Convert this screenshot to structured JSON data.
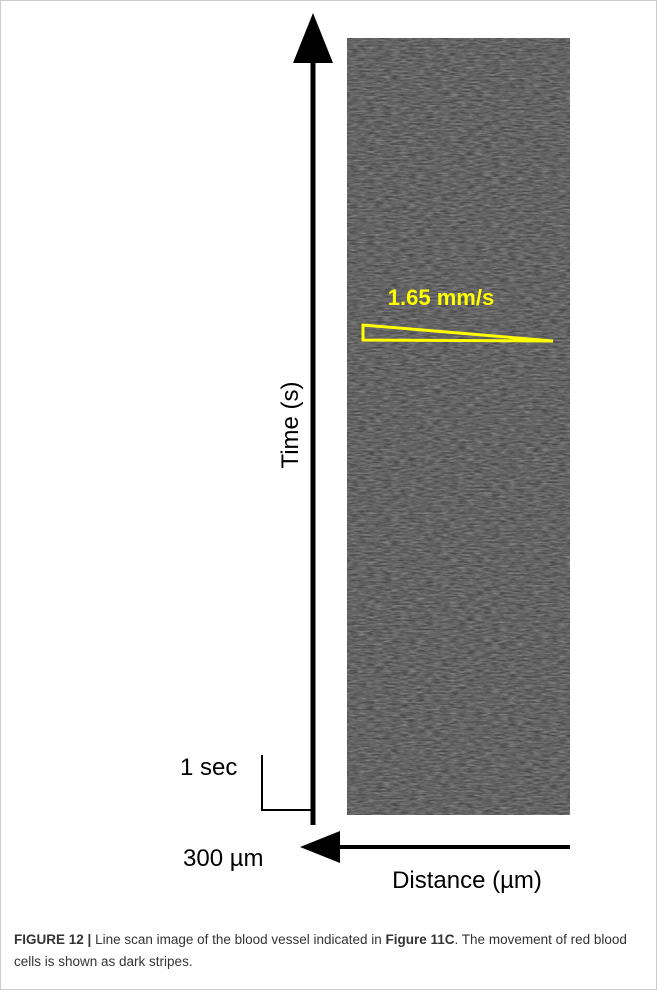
{
  "figure": {
    "time_axis_label": "Time (s)",
    "velocity_label": "1.65 mm/s",
    "time_scale_label": "1 sec",
    "distance_scale_label": "300 µm",
    "distance_axis_label": "Distance (µm)"
  },
  "caption": {
    "label": "FIGURE 12 |",
    "text_before": "Line scan image of the blood vessel indicated in",
    "reference": "Figure 11C",
    "text_after": ". The movement of red blood cells is shown as dark stripes."
  }
}
